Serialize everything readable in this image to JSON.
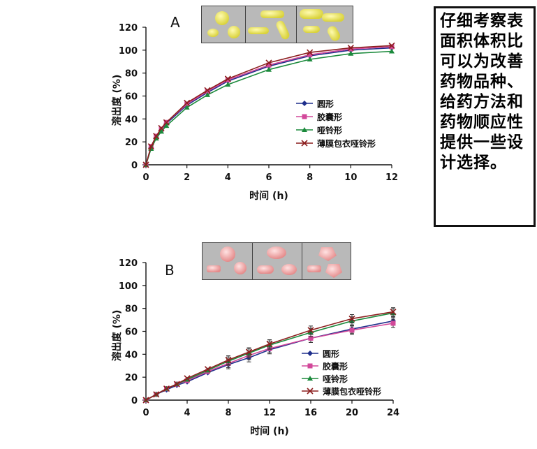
{
  "note": {
    "text": "仔细考察表面积体积比可以为改善药物品种、给药方法和药物顺应性提供一些设计选择。"
  },
  "colors": {
    "round": "#1f2f8c",
    "capsule": "#d2489a",
    "dumbbell": "#1b8a3c",
    "film": "#8c1f1f",
    "axis": "#111111",
    "thumb_bg": "#b9b9b9"
  },
  "legend_items": [
    {
      "key": "round",
      "label": "圆形",
      "marker": "diamond"
    },
    {
      "key": "capsule",
      "label": "胶囊形",
      "marker": "square"
    },
    {
      "key": "dumbbell",
      "label": "哑铃形",
      "marker": "triangle"
    },
    {
      "key": "film",
      "label": "薄膜包衣哑铃形",
      "marker": "x"
    }
  ],
  "chart_data": [
    {
      "type": "line",
      "panel": "A",
      "xlabel": "时间 (h)",
      "ylabel": "溶出度 (%)",
      "xlim": [
        0,
        12
      ],
      "ylim": [
        0,
        120
      ],
      "xticks": [
        0,
        2,
        4,
        6,
        8,
        10,
        12
      ],
      "yticks": [
        0,
        20,
        40,
        60,
        80,
        100,
        120
      ],
      "grid": false,
      "legend_position": "center-right",
      "images": "yellow tablets: round, capsule, dumbbell",
      "x": [
        0,
        0.25,
        0.5,
        0.75,
        1,
        2,
        3,
        4,
        6,
        8,
        10,
        12
      ],
      "series": [
        {
          "name": "圆形",
          "key": "round",
          "values": [
            0,
            15,
            24,
            30,
            36,
            52,
            63,
            73,
            86,
            95,
            100,
            102
          ]
        },
        {
          "name": "胶囊形",
          "key": "capsule",
          "values": [
            0,
            16,
            25,
            31,
            37,
            53,
            64,
            74,
            87,
            96,
            101,
            103
          ]
        },
        {
          "name": "哑铃形",
          "key": "dumbbell",
          "values": [
            0,
            14,
            23,
            29,
            34,
            50,
            61,
            70,
            83,
            92,
            97,
            99
          ]
        },
        {
          "name": "薄膜包衣哑铃形",
          "key": "film",
          "values": [
            0,
            16,
            25,
            32,
            37,
            54,
            65,
            75,
            89,
            98,
            102,
            104
          ]
        }
      ]
    },
    {
      "type": "line",
      "panel": "B",
      "xlabel": "时间 (h)",
      "ylabel": "溶出度 (%)",
      "xlim": [
        0,
        24
      ],
      "ylim": [
        0,
        120
      ],
      "xticks": [
        0,
        4,
        8,
        12,
        16,
        20,
        24
      ],
      "yticks": [
        0,
        20,
        40,
        60,
        80,
        100,
        120
      ],
      "grid": false,
      "legend_position": "lower-right",
      "images": "pink tablets: round, capsule, dumbbell",
      "x": [
        0,
        1,
        2,
        3,
        4,
        6,
        8,
        10,
        12,
        16,
        20,
        24
      ],
      "series": [
        {
          "name": "圆形",
          "key": "round",
          "values": [
            0,
            5,
            9,
            13,
            16,
            24,
            31,
            37,
            44,
            54,
            62,
            69
          ]
        },
        {
          "name": "胶囊形",
          "key": "capsule",
          "values": [
            0,
            5,
            10,
            14,
            17,
            25,
            32,
            39,
            45,
            54,
            61,
            67
          ]
        },
        {
          "name": "哑铃形",
          "key": "dumbbell",
          "values": [
            0,
            5,
            10,
            14,
            18,
            26,
            34,
            41,
            48,
            59,
            69,
            76
          ]
        },
        {
          "name": "薄膜包衣哑铃形",
          "key": "film",
          "values": [
            0,
            5,
            10,
            14,
            19,
            27,
            35,
            42,
            49,
            61,
            71,
            77
          ]
        }
      ]
    }
  ]
}
